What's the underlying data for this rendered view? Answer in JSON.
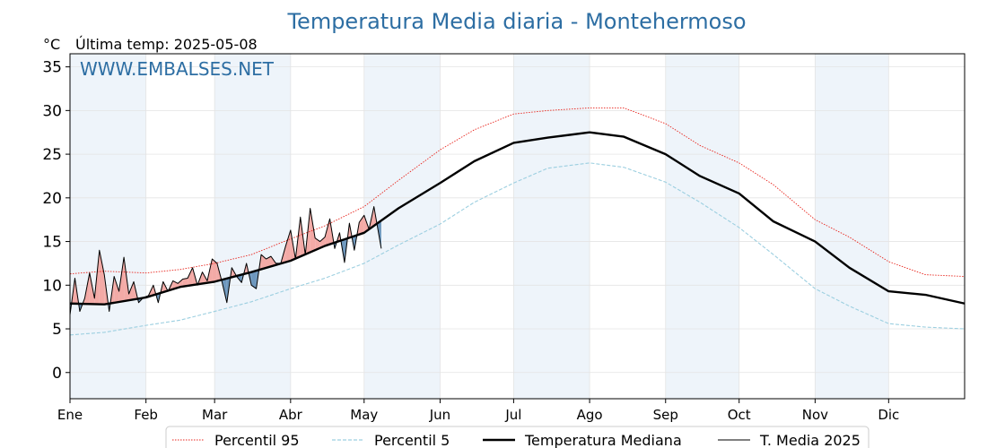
{
  "chart_data": {
    "type": "line",
    "title": "Temperatura Media diaria - Montehermoso",
    "unit_label": "°C",
    "last_update": "Última temp: 2025-05-08",
    "watermark": "WWW.EMBALSES.NET",
    "ylim": [
      -3,
      36.5
    ],
    "xlim": [
      1,
      366
    ],
    "yticks": [
      0,
      5,
      10,
      15,
      20,
      25,
      30,
      35
    ],
    "months": [
      {
        "label": "Ene",
        "day": 1
      },
      {
        "label": "Feb",
        "day": 32
      },
      {
        "label": "Mar",
        "day": 60
      },
      {
        "label": "Abr",
        "day": 91
      },
      {
        "label": "May",
        "day": 121
      },
      {
        "label": "Jun",
        "day": 152
      },
      {
        "label": "Jul",
        "day": 182
      },
      {
        "label": "Ago",
        "day": 213
      },
      {
        "label": "Sep",
        "day": 244
      },
      {
        "label": "Oct",
        "day": 274
      },
      {
        "label": "Nov",
        "day": 305
      },
      {
        "label": "Dic",
        "day": 335
      }
    ],
    "shaded_months": [
      "Ene",
      "Mar",
      "May",
      "Jul",
      "Sep",
      "Nov"
    ],
    "grid": true,
    "legend_position": "bottom",
    "series": [
      {
        "name": "Percentil 95",
        "style": "dotted-red",
        "x": [
          1,
          15,
          32,
          46,
          60,
          75,
          91,
          105,
          121,
          135,
          152,
          166,
          182,
          196,
          213,
          227,
          244,
          258,
          274,
          288,
          305,
          319,
          335,
          350,
          366
        ],
        "values": [
          11.3,
          11.6,
          11.4,
          11.8,
          12.5,
          13.5,
          15.3,
          16.8,
          19.0,
          22.0,
          25.5,
          27.8,
          29.6,
          30.0,
          30.3,
          30.3,
          28.5,
          26.0,
          24.0,
          21.5,
          17.5,
          15.5,
          12.7,
          11.2,
          11.0
        ]
      },
      {
        "name": "Percentil 5",
        "style": "dashed-lightblue",
        "x": [
          1,
          15,
          32,
          46,
          60,
          75,
          91,
          105,
          121,
          135,
          152,
          166,
          182,
          196,
          213,
          227,
          244,
          258,
          274,
          288,
          305,
          319,
          335,
          350,
          366
        ],
        "values": [
          4.3,
          4.6,
          5.4,
          6.0,
          7.0,
          8.1,
          9.6,
          10.8,
          12.5,
          14.6,
          17.0,
          19.5,
          21.7,
          23.4,
          24.0,
          23.5,
          21.8,
          19.5,
          16.6,
          13.5,
          9.6,
          7.6,
          5.6,
          5.2,
          5.0
        ]
      },
      {
        "name": "Temperatura Mediana",
        "style": "thick-black",
        "x": [
          1,
          15,
          32,
          46,
          60,
          75,
          91,
          105,
          121,
          135,
          152,
          166,
          182,
          196,
          213,
          227,
          244,
          258,
          274,
          288,
          305,
          319,
          335,
          350,
          366
        ],
        "values": [
          7.9,
          7.8,
          8.6,
          9.8,
          10.4,
          11.5,
          12.8,
          14.5,
          16.0,
          18.8,
          21.7,
          24.2,
          26.3,
          26.9,
          27.5,
          27.0,
          25.0,
          22.5,
          20.5,
          17.3,
          15.0,
          12.0,
          9.3,
          8.9,
          7.9
        ]
      },
      {
        "name": "T. Media 2025",
        "style": "thin-black",
        "x": [
          1,
          3,
          5,
          7,
          9,
          11,
          13,
          15,
          17,
          19,
          21,
          23,
          25,
          27,
          29,
          31,
          33,
          35,
          37,
          39,
          41,
          43,
          45,
          47,
          49,
          51,
          53,
          55,
          57,
          59,
          61,
          63,
          65,
          67,
          69,
          71,
          73,
          75,
          77,
          79,
          81,
          83,
          85,
          87,
          89,
          91,
          93,
          95,
          97,
          99,
          101,
          103,
          105,
          107,
          109,
          111,
          113,
          115,
          117,
          119,
          121,
          123,
          125,
          128
        ],
        "values": [
          6.6,
          10.8,
          7.0,
          8.5,
          11.4,
          8.5,
          14.0,
          11.2,
          7.0,
          11.0,
          9.3,
          13.2,
          9.0,
          10.4,
          8.0,
          8.6,
          8.8,
          10.0,
          8.0,
          10.4,
          9.3,
          10.5,
          10.2,
          10.7,
          10.8,
          12.0,
          10.0,
          11.5,
          10.5,
          13.0,
          12.5,
          10.4,
          8.0,
          12.0,
          11.0,
          10.3,
          12.5,
          10.0,
          9.6,
          13.5,
          13.0,
          13.3,
          12.5,
          12.5,
          14.5,
          16.3,
          13.0,
          17.8,
          13.5,
          18.8,
          15.4,
          15.0,
          15.5,
          17.6,
          14.2,
          16.0,
          12.6,
          17.1,
          14.0,
          17.2,
          18.0,
          16.4,
          19.0,
          14.2
        ]
      }
    ]
  },
  "legend": {
    "items": [
      {
        "label": "Percentil 95",
        "color": "#e8241c",
        "style": "dotted"
      },
      {
        "label": "Percentil 5",
        "color": "#9ccfe0",
        "style": "dashed"
      },
      {
        "label": "Temperatura Mediana",
        "color": "#000000",
        "style": "thick"
      },
      {
        "label": "T. Media 2025",
        "color": "#000000",
        "style": "thin"
      }
    ]
  },
  "colors": {
    "title": "#2d6ea3",
    "watermark": "#2d6ea3",
    "p95": "#e8241c",
    "p5": "#9ccfe0",
    "above_fill": "#f3aaa6",
    "below_fill": "#6d97bd",
    "shade": "#eef4fa"
  }
}
